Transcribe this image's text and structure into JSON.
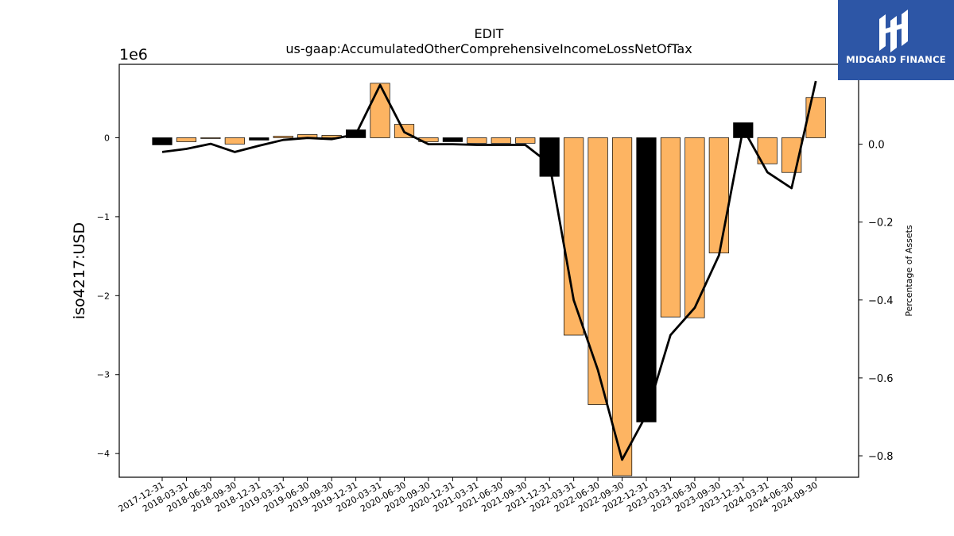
{
  "brand": {
    "name": "MIDGARD FINANCE",
    "bg_color": "#2d56a6",
    "logo_icon": "midgard-logo-icon"
  },
  "chart_data": {
    "type": "bar",
    "title": "EDIT",
    "subtitle": "us-gaap:AccumulatedOtherComprehensiveIncomeLossNetOfTax",
    "ylabel": "iso4217:USD",
    "y2label": "Percentage of Assets",
    "offset_text": "1e6",
    "categories": [
      "2017-12-31",
      "2018-03-31",
      "2018-06-30",
      "2018-09-30",
      "2018-12-31",
      "2019-03-31",
      "2019-06-30",
      "2019-09-30",
      "2019-12-31",
      "2020-03-31",
      "2020-06-30",
      "2020-09-30",
      "2020-12-31",
      "2021-03-31",
      "2021-06-30",
      "2021-09-30",
      "2021-12-31",
      "2022-03-31",
      "2022-06-30",
      "2022-09-30",
      "2022-12-31",
      "2023-03-31",
      "2023-06-30",
      "2023-09-30",
      "2023-12-31",
      "2024-03-31",
      "2024-06-30",
      "2024-09-30"
    ],
    "series": [
      {
        "type": "bar",
        "axis": "left",
        "units_multiplier": 1000000,
        "values": [
          -0.09,
          -0.05,
          -0.01,
          -0.08,
          -0.03,
          0.02,
          0.04,
          0.03,
          0.1,
          0.69,
          0.17,
          -0.05,
          -0.05,
          -0.07,
          -0.07,
          -0.07,
          -0.49,
          -2.5,
          -3.38,
          -4.28,
          -3.6,
          -2.27,
          -2.28,
          -1.46,
          0.19,
          -0.33,
          -0.44,
          0.51
        ],
        "highlight_indices": [
          0,
          4,
          8,
          12,
          16,
          20,
          24
        ],
        "color": "#fdb462",
        "highlight_color": "#000000"
      },
      {
        "type": "line",
        "axis": "right",
        "values": [
          -0.02,
          -0.012,
          0.001,
          -0.02,
          -0.004,
          0.011,
          0.016,
          0.013,
          0.025,
          0.152,
          0.031,
          0.0,
          0.0,
          -0.002,
          -0.002,
          -0.002,
          -0.05,
          -0.4,
          -0.58,
          -0.81,
          -0.695,
          -0.49,
          -0.42,
          -0.285,
          0.04,
          -0.072,
          -0.113,
          0.162
        ],
        "color": "#000000"
      }
    ],
    "ylim": [
      -4.3,
      0.93
    ],
    "y_ticks": [
      -4,
      -3,
      -2,
      -1,
      0
    ],
    "y2lim": [
      -0.855,
      0.205
    ],
    "y2_ticks": [
      -0.8,
      -0.6,
      -0.4,
      -0.2,
      0.0
    ],
    "grid": false
  }
}
